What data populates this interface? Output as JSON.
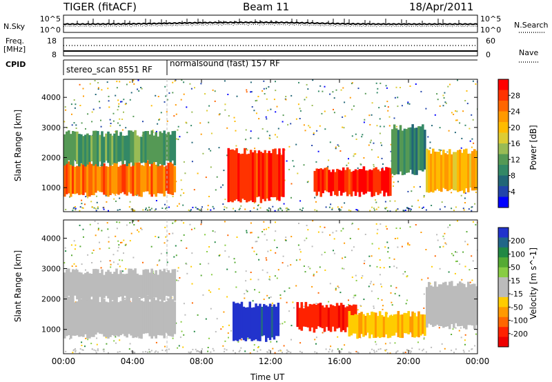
{
  "header": {
    "station": "TIGER (fitACF)",
    "beam": "Beam 11",
    "date": "18/Apr/2011"
  },
  "top_panels": {
    "nsky_label": "N.Sky",
    "nsearch_label": "N.Search",
    "nsky_ticks": [
      "10^5",
      "10^0"
    ],
    "nsearch_ticks": [
      "10^5",
      "10^0"
    ],
    "freq_label_line1": "Freq.",
    "freq_label_line2": "[MHz]",
    "freq_ticks": [
      "18",
      "8"
    ],
    "nave_label": "Nave",
    "nave_ticks": [
      "60",
      "0"
    ],
    "cpid_label": "CPID",
    "cpid_segments": [
      {
        "label": "stereo_scan 8551 RF",
        "start_hour": 0,
        "end_hour": 6
      },
      {
        "label": "normalsound (fast) 157 RF",
        "start_hour": 6,
        "end_hour": 24
      }
    ]
  },
  "power_colorbar": {
    "label": "Power [dB]",
    "ticks": [
      "28",
      "24",
      "20",
      "16",
      "12",
      "8",
      "4"
    ],
    "colors": [
      "#ff0000",
      "#ff3300",
      "#ff6600",
      "#ff9900",
      "#ffbb00",
      "#ddcc33",
      "#99bb55",
      "#559955",
      "#338866",
      "#226677",
      "#2244aa",
      "#0000ff"
    ]
  },
  "velocity_colorbar": {
    "label": "Velocity [m s^-1]",
    "ticks": [
      "200",
      "100",
      "50",
      "15",
      "-15",
      "-50",
      "-100",
      "-200"
    ],
    "colors": [
      "#2233cc",
      "#226688",
      "#228844",
      "#55aa33",
      "#88cc44",
      "#bbbbbb",
      "#bbbbbb",
      "#ffcc00",
      "#ff9900",
      "#ff6600",
      "#ff2200",
      "#ee0000"
    ]
  },
  "chart_data": [
    {
      "type": "heatmap",
      "panel": "power",
      "ylabel": "Slant Range [km]",
      "y_ticks": [
        "1000",
        "2000",
        "3000",
        "4000"
      ],
      "ylim": [
        200,
        4600
      ],
      "x_ticks": [
        "00:00",
        "04:00",
        "08:00",
        "12:00",
        "16:00",
        "20:00",
        "00:00"
      ],
      "xlim": [
        0,
        24
      ],
      "regions": [
        {
          "x": [
            0,
            6.5
          ],
          "y": [
            800,
            1800
          ],
          "value": 24
        },
        {
          "x": [
            0,
            6.5
          ],
          "y": [
            1800,
            2800
          ],
          "value": 10
        },
        {
          "x": [
            9.5,
            12.8
          ],
          "y": [
            600,
            2200
          ],
          "value": 28
        },
        {
          "x": [
            14.5,
            19.0
          ],
          "y": [
            800,
            1600
          ],
          "value": 28
        },
        {
          "x": [
            19.0,
            21.0
          ],
          "y": [
            1500,
            3000
          ],
          "value": 8
        },
        {
          "x": [
            21.0,
            24
          ],
          "y": [
            900,
            2200
          ],
          "value": 20
        }
      ]
    },
    {
      "type": "heatmap",
      "panel": "velocity",
      "ylabel": "Slant Range [km]",
      "y_ticks": [
        "1000",
        "2000",
        "3000",
        "4000"
      ],
      "ylim": [
        200,
        4600
      ],
      "x_ticks": [
        "00:00",
        "04:00",
        "08:00",
        "12:00",
        "16:00",
        "20:00",
        "00:00"
      ],
      "xlim": [
        0,
        24
      ],
      "xlabel": "Time UT",
      "regions": [
        {
          "x": [
            0,
            6.5
          ],
          "y": [
            800,
            2000
          ],
          "value": 0
        },
        {
          "x": [
            0,
            6.5
          ],
          "y": [
            2000,
            2900
          ],
          "value": 0
        },
        {
          "x": [
            9.8,
            12.5
          ],
          "y": [
            700,
            1800
          ],
          "value": 220
        },
        {
          "x": [
            13.5,
            17.0
          ],
          "y": [
            1000,
            1800
          ],
          "value": -200
        },
        {
          "x": [
            16.5,
            21.0
          ],
          "y": [
            800,
            1500
          ],
          "value": -80
        },
        {
          "x": [
            21.0,
            24
          ],
          "y": [
            1100,
            2500
          ],
          "value": 0
        }
      ]
    }
  ]
}
